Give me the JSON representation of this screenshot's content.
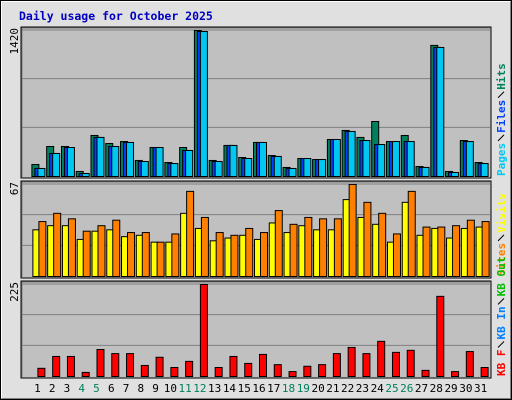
{
  "chart_data": [
    {
      "type": "bar",
      "title": "Daily usage for October 2025",
      "ylim": [
        0,
        1420
      ],
      "yticks": [
        1420
      ],
      "series": [
        {
          "name": "Hits",
          "color": "#00805c",
          "values": [
            117,
            292,
            292,
            49,
            399,
            321,
            340,
            156,
            282,
            136,
            282,
            1420,
            156,
            302,
            185,
            331,
            204,
            88,
            175,
            165,
            360,
            448,
            380,
            535,
            340,
            399,
            97,
            1275,
            49,
            350,
            136
          ]
        },
        {
          "name": "Files",
          "color": "#0040ff",
          "values": [
            78,
            224,
            282,
            29,
            380,
            292,
            331,
            146,
            282,
            126,
            253,
            1410,
            146,
            302,
            175,
            331,
            195,
            78,
            175,
            165,
            360,
            438,
            350,
            311,
            340,
            340,
            88,
            1255,
            39,
            340,
            126
          ]
        },
        {
          "name": "Pages",
          "color": "#00c8f0",
          "values": [
            78,
            224,
            282,
            29,
            380,
            292,
            331,
            146,
            282,
            126,
            253,
            1410,
            146,
            302,
            175,
            331,
            195,
            78,
            175,
            165,
            360,
            438,
            350,
            311,
            340,
            340,
            88,
            1255,
            39,
            340,
            126
          ]
        }
      ]
    },
    {
      "type": "bar",
      "ylim": [
        0,
        67
      ],
      "yticks": [
        67
      ],
      "series": [
        {
          "name": "Visits",
          "color": "#ffff00",
          "values": [
            34,
            37,
            37,
            27,
            33,
            34,
            29,
            30,
            25,
            25,
            46,
            35,
            26,
            28,
            30,
            27,
            39,
            32,
            37,
            34,
            34,
            56,
            43,
            38,
            25,
            54,
            30,
            35,
            28,
            35,
            36
          ]
        },
        {
          "name": "Sites",
          "color": "#ff8000",
          "values": [
            40,
            46,
            42,
            33,
            37,
            41,
            32,
            32,
            25,
            31,
            62,
            43,
            32,
            30,
            35,
            32,
            48,
            38,
            43,
            42,
            42,
            67,
            54,
            46,
            31,
            62,
            36,
            36,
            37,
            41,
            40
          ]
        }
      ]
    },
    {
      "type": "bar",
      "ylim": [
        0,
        225
      ],
      "yticks": [
        225
      ],
      "categories": [
        "1",
        "2",
        "3",
        "4",
        "5",
        "6",
        "7",
        "8",
        "9",
        "10",
        "11",
        "12",
        "13",
        "14",
        "15",
        "16",
        "17",
        "18",
        "19",
        "20",
        "21",
        "22",
        "23",
        "24",
        "25",
        "26",
        "27",
        "28",
        "29",
        "30",
        "31"
      ],
      "category_colors": [
        "#000000",
        "#000000",
        "#000000",
        "#00805c",
        "#00805c",
        "#000000",
        "#000000",
        "#000000",
        "#000000",
        "#000000",
        "#00805c",
        "#00805c",
        "#000000",
        "#000000",
        "#000000",
        "#000000",
        "#000000",
        "#00805c",
        "#00805c",
        "#000000",
        "#000000",
        "#000000",
        "#000000",
        "#000000",
        "#00805c",
        "#00805c",
        "#000000",
        "#000000",
        "#000000",
        "#000000",
        "#000000"
      ],
      "series": [
        {
          "name": "KB Out",
          "color": "#00c000",
          "values": [
            0,
            0,
            0,
            0,
            0,
            0,
            0,
            0,
            0,
            0,
            0,
            0,
            0,
            0,
            0,
            0,
            0,
            0,
            0,
            0,
            0,
            0,
            0,
            0,
            0,
            0,
            0,
            0,
            0,
            0,
            0
          ]
        },
        {
          "name": "KB In",
          "color": "#0080ff",
          "values": [
            0,
            0,
            0,
            0,
            0,
            0,
            0,
            0,
            0,
            0,
            0,
            0,
            0,
            0,
            0,
            0,
            0,
            0,
            0,
            0,
            0,
            0,
            0,
            0,
            0,
            0,
            0,
            0,
            0,
            0,
            0
          ]
        },
        {
          "name": "KB F",
          "color": "#ff0000",
          "values": [
            20,
            49,
            49,
            10,
            66,
            56,
            56,
            27,
            47,
            22,
            37,
            225,
            22,
            49,
            32,
            54,
            29,
            12,
            25,
            29,
            56,
            71,
            56,
            86,
            59,
            64,
            15,
            196,
            12,
            61,
            22
          ]
        }
      ]
    }
  ]
}
